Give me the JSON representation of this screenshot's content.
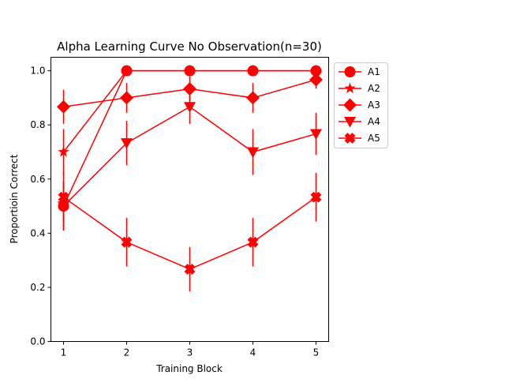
{
  "chart_data": {
    "type": "line",
    "title": "Alpha Learning Curve No Observation(n=30)",
    "xlabel": "Training Block",
    "ylabel": "Proportioin Correct",
    "x": [
      1,
      2,
      3,
      4,
      5
    ],
    "xlim": [
      0.8,
      5.2
    ],
    "ylim": [
      0.0,
      1.05
    ],
    "xticks": [
      1,
      2,
      3,
      4,
      5
    ],
    "yticks": [
      0.0,
      0.2,
      0.4,
      0.6,
      0.8,
      1.0
    ],
    "ytick_labels": [
      "0.0",
      "0.2",
      "0.4",
      "0.6",
      "0.8",
      "1.0"
    ],
    "grid": false,
    "legend_position": "outside-upper-right",
    "color": "#ff0000",
    "series": [
      {
        "name": "A1",
        "marker": "circle",
        "values": [
          0.5,
          1.0,
          1.0,
          1.0,
          1.0
        ],
        "errors": [
          0.09,
          0.0,
          0.0,
          0.0,
          0.0
        ]
      },
      {
        "name": "A2",
        "marker": "star",
        "values": [
          0.7,
          1.0,
          1.0,
          1.0,
          1.0
        ],
        "errors": [
          0.085,
          0.0,
          0.0,
          0.0,
          0.0
        ]
      },
      {
        "name": "A3",
        "marker": "diamond",
        "values": [
          0.867,
          0.9,
          0.933,
          0.9,
          0.967
        ],
        "errors": [
          0.063,
          0.055,
          0.046,
          0.055,
          0.033
        ]
      },
      {
        "name": "A4",
        "marker": "triangle-down",
        "values": [
          0.5,
          0.733,
          0.867,
          0.7,
          0.767
        ],
        "errors": [
          0.09,
          0.082,
          0.063,
          0.085,
          0.078
        ]
      },
      {
        "name": "A5",
        "marker": "x-filled",
        "values": [
          0.533,
          0.367,
          0.267,
          0.367,
          0.533
        ],
        "errors": [
          0.09,
          0.09,
          0.082,
          0.09,
          0.09
        ]
      }
    ]
  }
}
